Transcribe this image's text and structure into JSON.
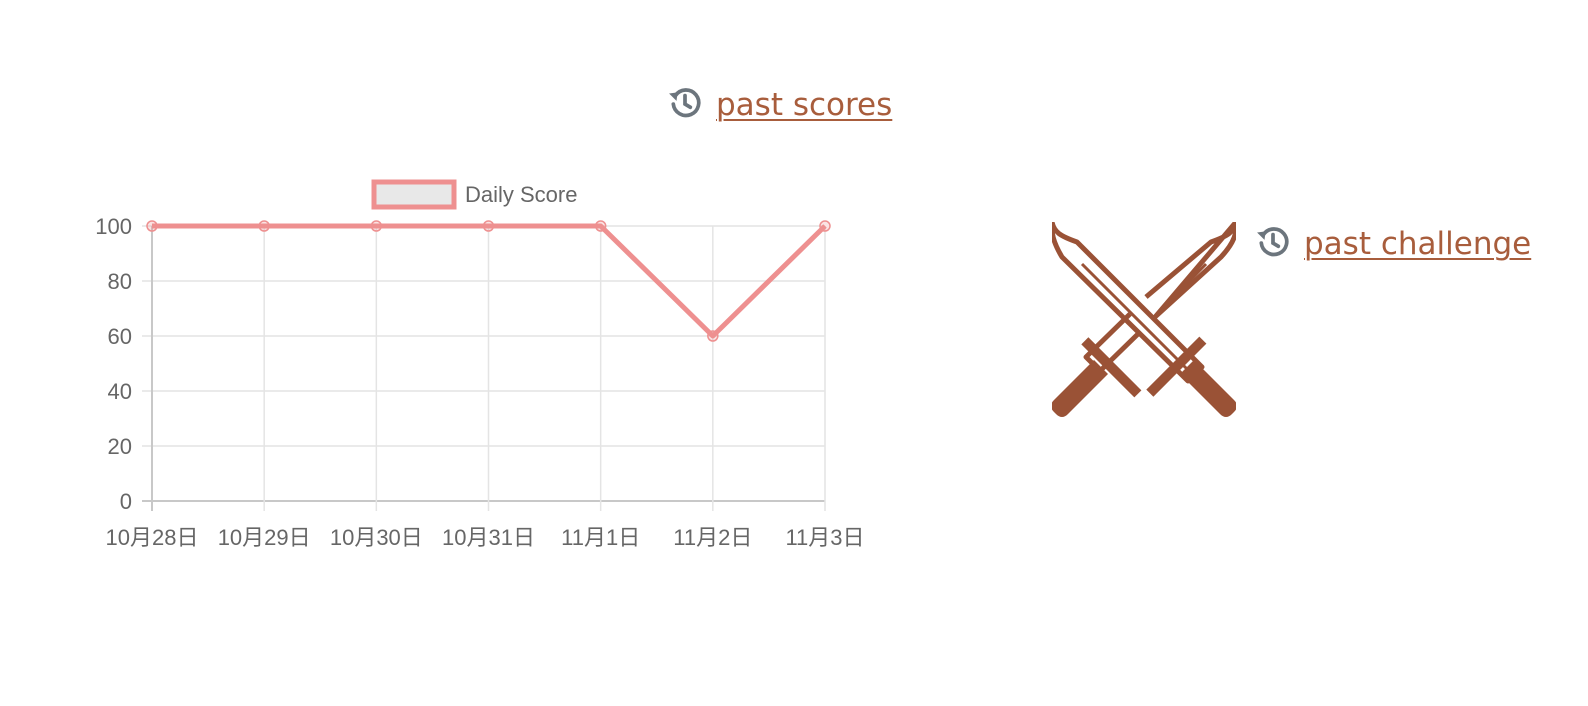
{
  "scores_link": {
    "label": "past scores",
    "icon": "history-icon"
  },
  "challenge_link": {
    "label": "past challenge",
    "icon": "history-icon"
  },
  "swords_icon": "crossed-swords-icon",
  "colors": {
    "accent": "#a85d3c",
    "icon_gray": "#6c757d",
    "line": "#ee9090",
    "sword": "#9a5236"
  },
  "chart_data": {
    "type": "line",
    "categories": [
      "10月28日",
      "10月29日",
      "10月30日",
      "10月31日",
      "11月1日",
      "11月2日",
      "11月3日"
    ],
    "series": [
      {
        "name": "Daily Score",
        "values": [
          100,
          100,
          100,
          100,
          100,
          60,
          100
        ]
      }
    ],
    "yticks": [
      0,
      20,
      40,
      60,
      80,
      100
    ],
    "ylim": [
      0,
      100
    ],
    "legend": "top-center",
    "grid": true
  }
}
